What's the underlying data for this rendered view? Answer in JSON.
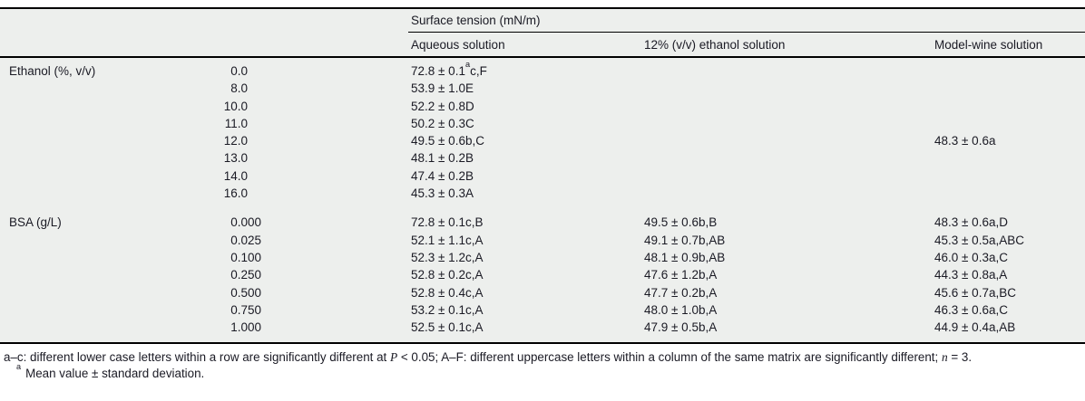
{
  "table": {
    "group_header": "Surface tension (mN/m)",
    "columns": [
      "Aqueous solution",
      "12% (v/v) ethanol solution",
      "Model-wine solution"
    ],
    "sections": [
      {
        "label": "Ethanol (%, v/v)",
        "rows": [
          {
            "param": "0.0",
            "aqueous_pre": "72.8 ± 0.1",
            "aqueous_sup": "a",
            "aqueous_rest": "c,F",
            "ethanol12": "",
            "model_wine": ""
          },
          {
            "param": "8.0",
            "aqueous": "53.9 ± 1.0E",
            "ethanol12": "",
            "model_wine": ""
          },
          {
            "param": "10.0",
            "aqueous": "52.2 ± 0.8D",
            "ethanol12": "",
            "model_wine": ""
          },
          {
            "param": "11.0",
            "aqueous": "50.2 ± 0.3C",
            "ethanol12": "",
            "model_wine": ""
          },
          {
            "param": "12.0",
            "aqueous": "49.5 ± 0.6b,C",
            "ethanol12": "",
            "model_wine": "48.3 ± 0.6a"
          },
          {
            "param": "13.0",
            "aqueous": "48.1 ± 0.2B",
            "ethanol12": "",
            "model_wine": ""
          },
          {
            "param": "14.0",
            "aqueous": "47.4 ± 0.2B",
            "ethanol12": "",
            "model_wine": ""
          },
          {
            "param": "16.0",
            "aqueous": "45.3 ± 0.3A",
            "ethanol12": "",
            "model_wine": ""
          }
        ]
      },
      {
        "label": "BSA (g/L)",
        "rows": [
          {
            "param": "0.000",
            "aqueous": "72.8 ± 0.1c,B",
            "ethanol12": "49.5 ± 0.6b,B",
            "model_wine": "48.3 ± 0.6a,D"
          },
          {
            "param": "0.025",
            "aqueous": "52.1 ± 1.1c,A",
            "ethanol12": "49.1 ± 0.7b,AB",
            "model_wine": "45.3 ± 0.5a,ABC"
          },
          {
            "param": "0.100",
            "aqueous": "52.3 ± 1.2c,A",
            "ethanol12": "48.1 ± 0.9b,AB",
            "model_wine": "46.0 ± 0.3a,C"
          },
          {
            "param": "0.250",
            "aqueous": "52.8 ± 0.2c,A",
            "ethanol12": "47.6 ± 1.2b,A",
            "model_wine": "44.3 ± 0.8a,A"
          },
          {
            "param": "0.500",
            "aqueous": "52.8 ± 0.4c,A",
            "ethanol12": "47.7 ± 0.2b,A",
            "model_wine": "45.6 ± 0.7a,BC"
          },
          {
            "param": "0.750",
            "aqueous": "53.2 ± 0.1c,A",
            "ethanol12": "48.0 ± 1.0b,A",
            "model_wine": "46.3 ± 0.6a,C"
          },
          {
            "param": "1.000",
            "aqueous": "52.5 ± 0.1c,A",
            "ethanol12": "47.9 ± 0.5b,A",
            "model_wine": "44.9 ± 0.4a,AB"
          }
        ]
      }
    ]
  },
  "footnotes": {
    "general": {
      "part1": "a–c: different lower case letters within a row are significantly different at ",
      "p_var": "P",
      "part2": " < 0.05; A–F: different uppercase letters within a column of the same matrix are significantly different; ",
      "n_var": "n",
      "part3": " = 3."
    },
    "note_a": {
      "marker": "a",
      "text": "Mean value ± standard deviation."
    }
  },
  "colors": {
    "table_background": "#edefed",
    "rule": "#000000",
    "text": "#1a1a24"
  }
}
